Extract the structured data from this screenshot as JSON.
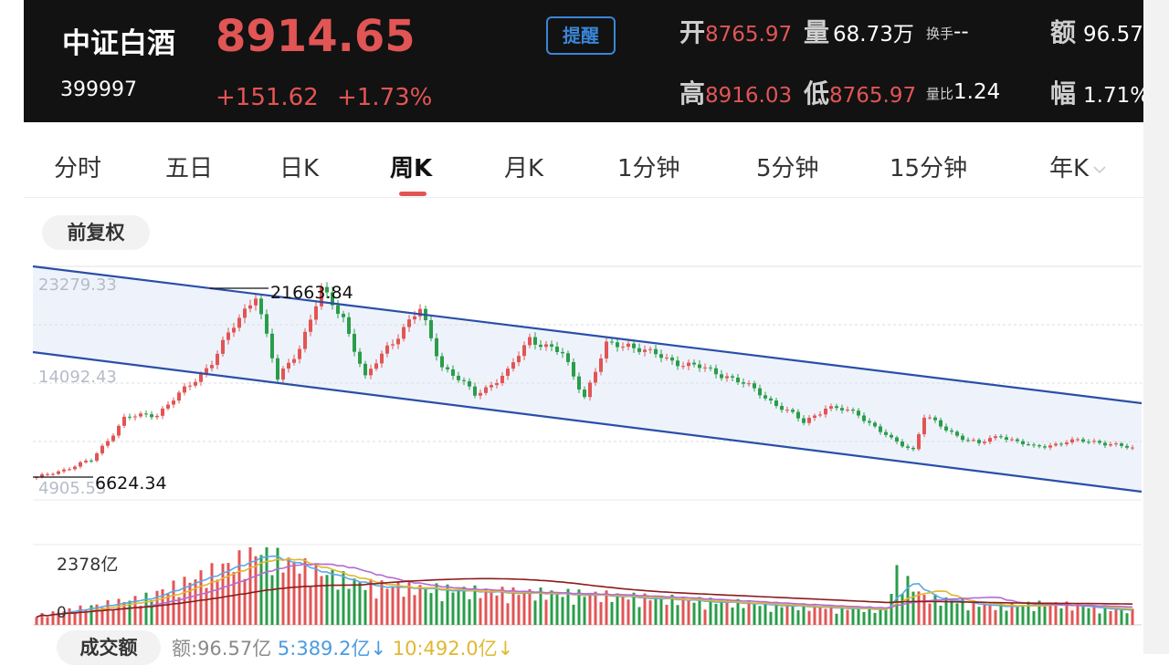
{
  "header": {
    "name": "中证白酒",
    "code": "399997",
    "price": "8914.65",
    "change_abs": "+151.62",
    "change_pct": "+1.73%",
    "alert_label": "提醒",
    "stats": {
      "open_label": "开",
      "open": "8765.97",
      "volume_label": "量",
      "volume": "68.73万",
      "turnover_rate_label": "换手",
      "turnover_rate": "--",
      "amount_label": "额",
      "amount": "96.57",
      "high_label": "高",
      "high": "8916.03",
      "low_label": "低",
      "low": "8765.97",
      "vol_ratio_label": "量比",
      "vol_ratio": "1.24",
      "amplitude_label": "幅",
      "amplitude": "1.71%"
    }
  },
  "tabs": [
    {
      "label": "分时"
    },
    {
      "label": "五日"
    },
    {
      "label": "日K"
    },
    {
      "label": "周K",
      "active": true
    },
    {
      "label": "月K"
    },
    {
      "label": "1分钟"
    },
    {
      "label": "5分钟"
    },
    {
      "label": "15分钟"
    },
    {
      "label": "年K"
    }
  ],
  "adjust_label": "前复权",
  "volume_panel": {
    "label": "成交额",
    "amount": "额:96.57亿",
    "ma5": "5:389.2亿↓",
    "ma10": "10:492.0亿↓",
    "max_label": "2378亿",
    "zero_label": "0"
  },
  "colors": {
    "up": "#e25555",
    "down": "#2a9d4a",
    "channel": "#2a4fa8",
    "channel_fill": "#eef3fb",
    "ma5": "#5aa9e6",
    "ma10": "#e0b830",
    "ma20": "#b26cd4",
    "ma60": "#8b1c1c"
  },
  "chart_data": {
    "type": "candlestick",
    "title": "中证白酒 周K 前复权",
    "y_axis_labels": [
      "23279.33",
      "14092.43",
      "4905.53"
    ],
    "ylim": [
      4905.53,
      23279.33
    ],
    "highest_marker": "21663.84",
    "lowest_marker": "6624.34",
    "close_path": [
      [
        0,
        6624
      ],
      [
        10,
        8000
      ],
      [
        16,
        11300
      ],
      [
        22,
        11700
      ],
      [
        28,
        13900
      ],
      [
        32,
        15800
      ],
      [
        36,
        18500
      ],
      [
        40,
        21200
      ],
      [
        44,
        14300
      ],
      [
        48,
        17000
      ],
      [
        52,
        21300
      ],
      [
        56,
        19300
      ],
      [
        60,
        14400
      ],
      [
        64,
        17000
      ],
      [
        70,
        19800
      ],
      [
        74,
        15500
      ],
      [
        80,
        13200
      ],
      [
        86,
        14900
      ],
      [
        90,
        17700
      ],
      [
        96,
        16300
      ],
      [
        100,
        13100
      ],
      [
        104,
        17000
      ],
      [
        108,
        17200
      ],
      [
        112,
        16400
      ],
      [
        120,
        15400
      ],
      [
        126,
        14700
      ],
      [
        132,
        13300
      ],
      [
        140,
        11000
      ],
      [
        144,
        12200
      ],
      [
        150,
        11700
      ],
      [
        156,
        9600
      ],
      [
        160,
        8900
      ],
      [
        162,
        11500
      ],
      [
        166,
        10400
      ],
      [
        172,
        9300
      ],
      [
        176,
        10000
      ],
      [
        182,
        9000
      ],
      [
        188,
        9500
      ],
      [
        194,
        9500
      ],
      [
        200,
        8900
      ]
    ],
    "volume_max_yi": 2378,
    "volume_path_yi": [
      [
        0,
        300
      ],
      [
        20,
        900
      ],
      [
        36,
        2000
      ],
      [
        40,
        2378
      ],
      [
        52,
        1700
      ],
      [
        60,
        1300
      ],
      [
        80,
        1100
      ],
      [
        100,
        1000
      ],
      [
        120,
        800
      ],
      [
        140,
        600
      ],
      [
        155,
        500
      ],
      [
        157,
        1700
      ],
      [
        162,
        900
      ],
      [
        175,
        600
      ],
      [
        185,
        700
      ],
      [
        200,
        450
      ]
    ]
  }
}
